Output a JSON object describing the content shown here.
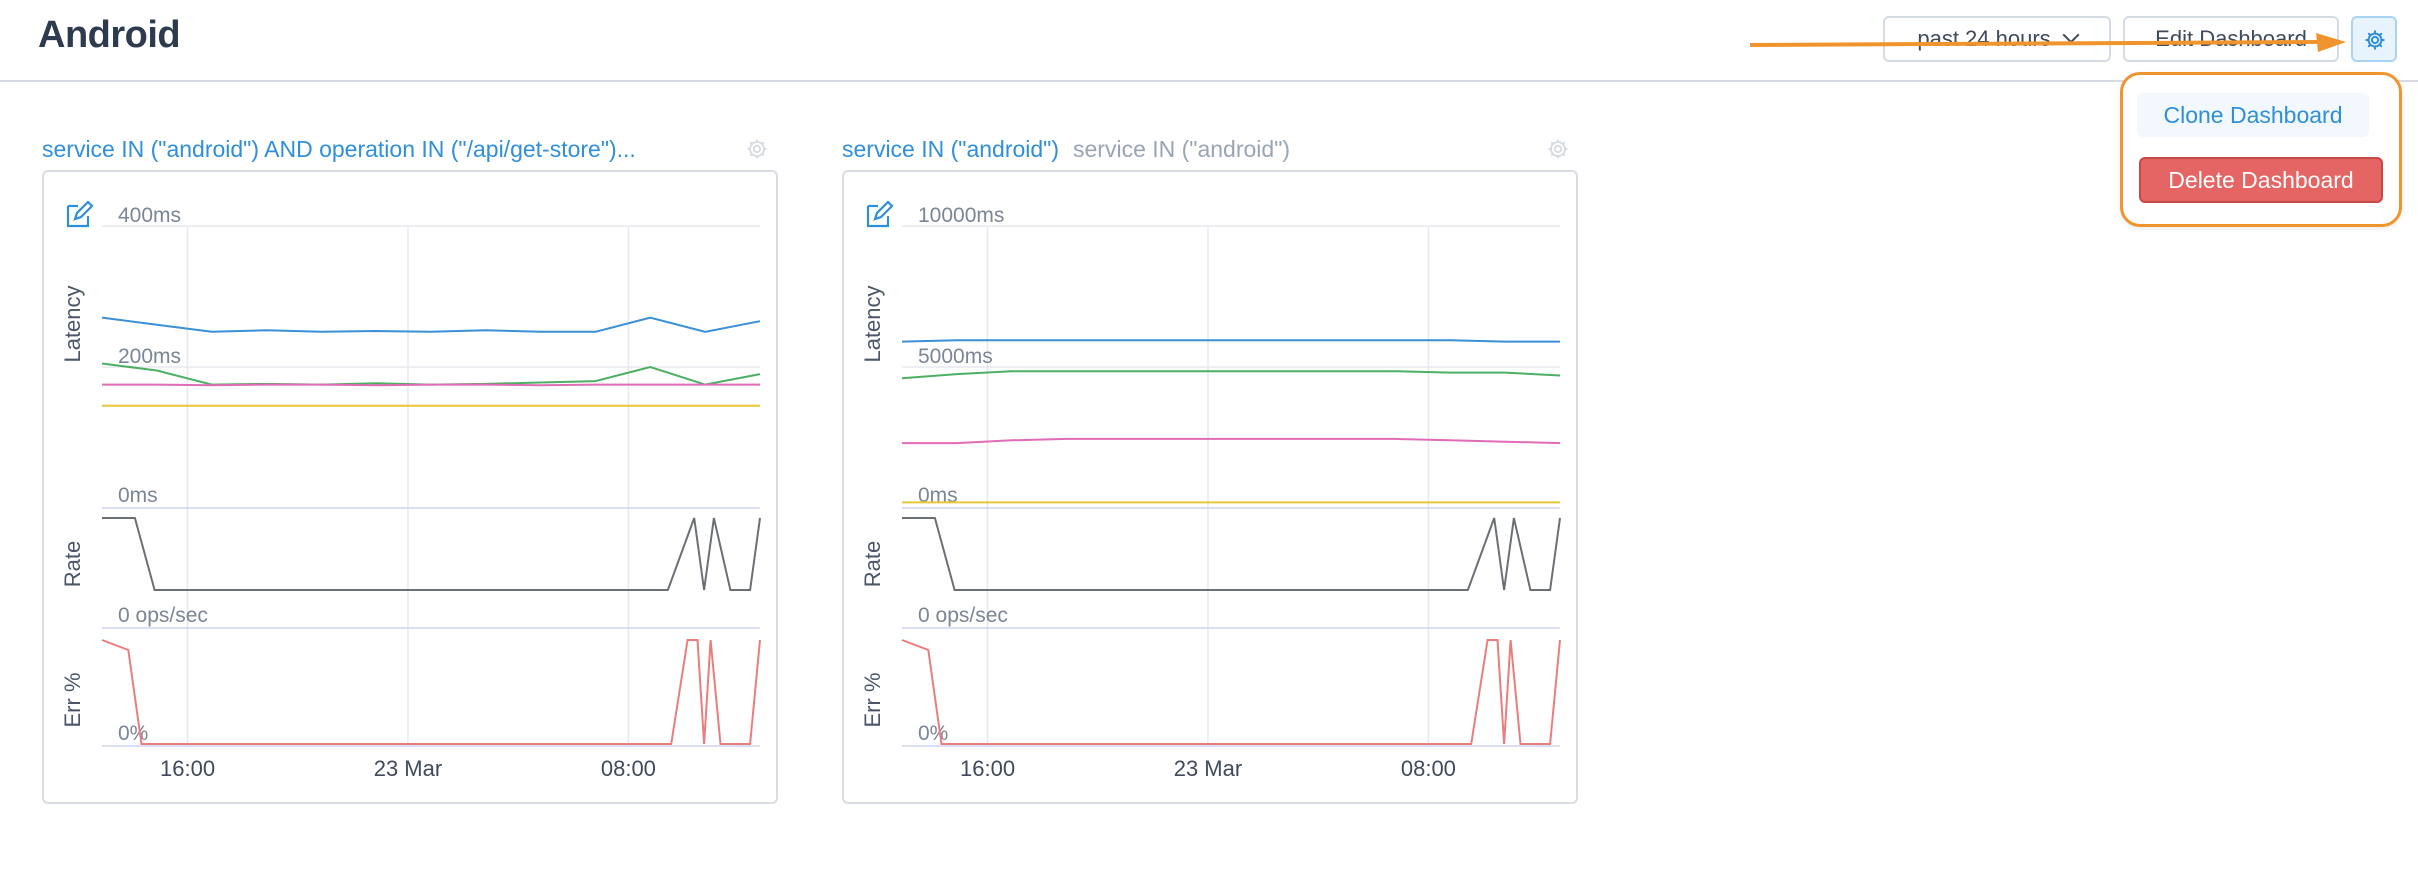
{
  "header": {
    "title": "Android",
    "time_range": "past 24 hours",
    "edit_label": "Edit Dashboard"
  },
  "settings_menu": {
    "clone_label": "Clone Dashboard",
    "delete_label": "Delete Dashboard"
  },
  "icons": {
    "settings": "gear-icon",
    "edit": "pencil-square-icon",
    "dropdown": "chevron-down-icon"
  },
  "colors": {
    "accent": "#2f8fd8",
    "danger": "#e56464",
    "highlight": "#f0952e"
  },
  "panels": [
    {
      "query": "service IN (\"android\") AND operation IN (\"/api/get-store\")...",
      "secondary_query": "",
      "latency_max": "400ms",
      "latency_mid": "200ms",
      "latency_min": "0ms",
      "rate_min": "0 ops/sec",
      "err_min": "0%",
      "latency_label": "Latency",
      "rate_label": "Rate",
      "err_label": "Err %",
      "x_ticks": [
        "16:00",
        "23 Mar",
        "08:00"
      ]
    },
    {
      "query": "service IN (\"android\")",
      "secondary_query": "service IN (\"android\")",
      "latency_max": "10000ms",
      "latency_mid": "5000ms",
      "latency_min": "0ms",
      "rate_min": "0 ops/sec",
      "err_min": "0%",
      "latency_label": "Latency",
      "rate_label": "Rate",
      "err_label": "Err %",
      "x_ticks": [
        "16:00",
        "23 Mar",
        "08:00"
      ]
    }
  ],
  "chart_data": [
    {
      "type": "line",
      "title": "service IN (\"android\") AND operation IN (\"/api/get-store\")...",
      "ylabel": "Latency",
      "ylim": [
        0,
        400
      ],
      "x_ticks": [
        "16:00",
        "23 Mar",
        "08:00"
      ],
      "series_colors": [
        "#3b8fd6",
        "#4caf63",
        "#e06bb6",
        "#e8c63a"
      ],
      "series": [
        {
          "values": [
            270,
            260,
            250,
            252,
            250,
            251,
            250,
            252,
            250,
            250,
            270,
            250,
            265
          ]
        },
        {
          "values": [
            205,
            195,
            175,
            176,
            175,
            177,
            175,
            176,
            178,
            180,
            200,
            175,
            190
          ]
        },
        {
          "values": [
            175,
            175,
            174,
            175,
            175,
            174,
            175,
            175,
            174,
            175,
            175,
            175,
            175
          ]
        },
        {
          "values": [
            145,
            145,
            145,
            145,
            145,
            145,
            145,
            145,
            145,
            145,
            145,
            145,
            145
          ]
        }
      ],
      "rate": {
        "ylabel": "Rate",
        "min_label": "0 ops/sec"
      },
      "error": {
        "ylabel": "Err %",
        "min_label": "0%"
      }
    },
    {
      "type": "line",
      "title": "service IN (\"android\")",
      "ylabel": "Latency",
      "ylim": [
        0,
        10000
      ],
      "x_ticks": [
        "16:00",
        "23 Mar",
        "08:00"
      ],
      "series_colors": [
        "#3b8fd6",
        "#4caf63",
        "#e06bb6",
        "#e8c63a"
      ],
      "series": [
        {
          "values": [
            5900,
            5950,
            5950,
            5950,
            5950,
            5950,
            5950,
            5950,
            5950,
            5950,
            5950,
            5900,
            5900
          ]
        },
        {
          "values": [
            4600,
            4750,
            4850,
            4850,
            4850,
            4850,
            4850,
            4850,
            4850,
            4850,
            4800,
            4800,
            4700
          ]
        },
        {
          "values": [
            2300,
            2300,
            2400,
            2450,
            2450,
            2450,
            2450,
            2450,
            2450,
            2450,
            2400,
            2350,
            2300
          ]
        },
        {
          "values": [
            200,
            200,
            200,
            200,
            200,
            200,
            200,
            200,
            200,
            200,
            200,
            200,
            200
          ]
        }
      ],
      "rate": {
        "ylabel": "Rate",
        "min_label": "0 ops/sec"
      },
      "error": {
        "ylabel": "Err %",
        "min_label": "0%"
      }
    }
  ]
}
